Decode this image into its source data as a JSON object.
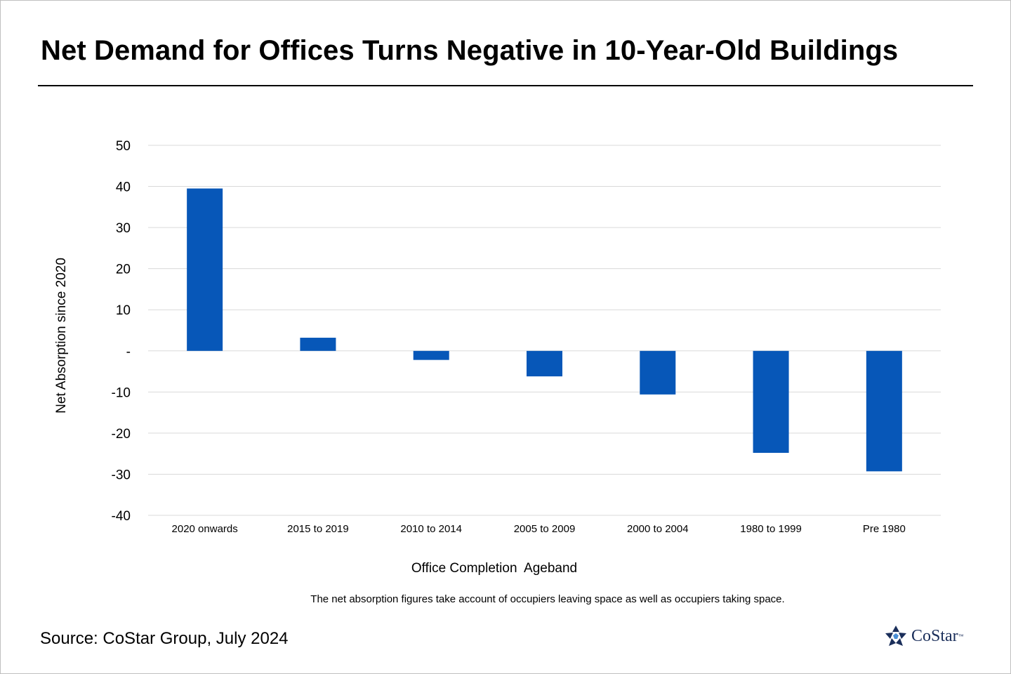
{
  "title": "Net Demand for Offices Turns Negative in 10-Year-Old Buildings",
  "note": "The net absorption figures take account of occupiers leaving space as well as occupiers taking space.",
  "source": "Source: CoStar Group, July 2024",
  "logo": {
    "name": "CoStar",
    "tm": "™",
    "icon": "costar-star-icon"
  },
  "colors": {
    "bar": "#0757b8",
    "grid": "#d9d9d9",
    "logo": "#1a2e5a"
  },
  "chart_data": {
    "type": "bar",
    "categories": [
      "2020 onwards",
      "2015 to 2019",
      "2010 to 2014",
      "2005 to 2009",
      "2000 to 2004",
      "1980 to 1999",
      "Pre 1980"
    ],
    "values": [
      39.5,
      3.2,
      -2.2,
      -6.2,
      -10.6,
      -24.8,
      -29.3
    ],
    "xlabel": "Office Completion  Ageband",
    "ylabel": "Net Absorption since 2020",
    "ylim": [
      -40,
      50
    ],
    "yticks": [
      50,
      40,
      30,
      20,
      10,
      0,
      -10,
      -20,
      -30,
      -40
    ],
    "ytick_labels": [
      "50",
      "40",
      "30",
      "20",
      "10",
      "-",
      "-10",
      "-20",
      "-30",
      "-40"
    ],
    "grid": true,
    "legend": "none"
  }
}
